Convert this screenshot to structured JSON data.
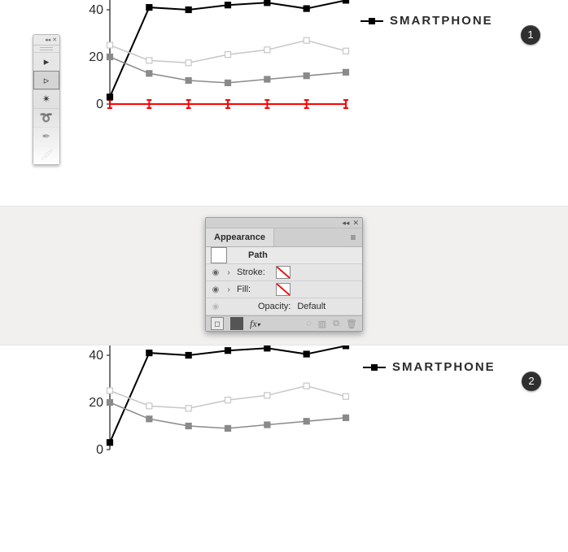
{
  "badges": {
    "one": "1",
    "two": "2"
  },
  "legend": {
    "label": "SMARTPHONE"
  },
  "toolbox": {
    "head": {
      "collapse": "◂◂",
      "close": "✕"
    },
    "tools": [
      {
        "name": "selection-tool",
        "glyph": "▸"
      },
      {
        "name": "direct-selection-tool",
        "glyph": "▹",
        "selected": true
      },
      {
        "name": "magic-wand-tool",
        "glyph": "✴"
      },
      {
        "name": "lasso-tool",
        "glyph": "➰"
      },
      {
        "name": "pen-tool",
        "glyph": "✒"
      },
      {
        "name": "brush-tool",
        "glyph": "🖌"
      }
    ]
  },
  "appearance": {
    "title": "Appearance",
    "pathLabel": "Path",
    "rows": {
      "stroke": "Stroke:",
      "fill": "Fill:",
      "opacity": "Opacity:",
      "opacityValue": "Default"
    },
    "controls": {
      "collapse": "◂◂",
      "close": "✕",
      "menu": "≡"
    }
  },
  "chart": {
    "xStart": 135,
    "xEnd": 425,
    "xCount": 7,
    "yZeroPx": 128,
    "pxPerUnit": 2.9,
    "axisColor": "#2b2b2b",
    "yTicks": [
      {
        "value": 0,
        "label": "0"
      },
      {
        "value": 20,
        "label": "20"
      },
      {
        "value": 40,
        "label": "40"
      }
    ],
    "redLine": {
      "show": true,
      "color": "#ff0000",
      "values": [
        0,
        0,
        0,
        0,
        0,
        0,
        0
      ],
      "marker": "tickI"
    },
    "series": [
      {
        "name": "smartphone",
        "color": "#000000",
        "values": [
          3,
          41,
          40,
          42,
          43,
          40.5,
          44
        ],
        "extraTail": {
          "dx": 18,
          "value": 48
        },
        "markerSize": 7,
        "lineWidth": 2,
        "filled": true
      },
      {
        "name": "series-b",
        "color": "#c7c7c7",
        "values": [
          25,
          18.5,
          17.5,
          21,
          23,
          27,
          22.5
        ],
        "markerSize": 7,
        "lineWidth": 1.5,
        "filled": false
      },
      {
        "name": "series-c",
        "color": "#8a8a8a",
        "values": [
          20,
          13,
          10,
          9,
          10.5,
          12,
          13.5
        ],
        "markerSize": 7,
        "lineWidth": 1.5,
        "filled": true
      }
    ]
  }
}
